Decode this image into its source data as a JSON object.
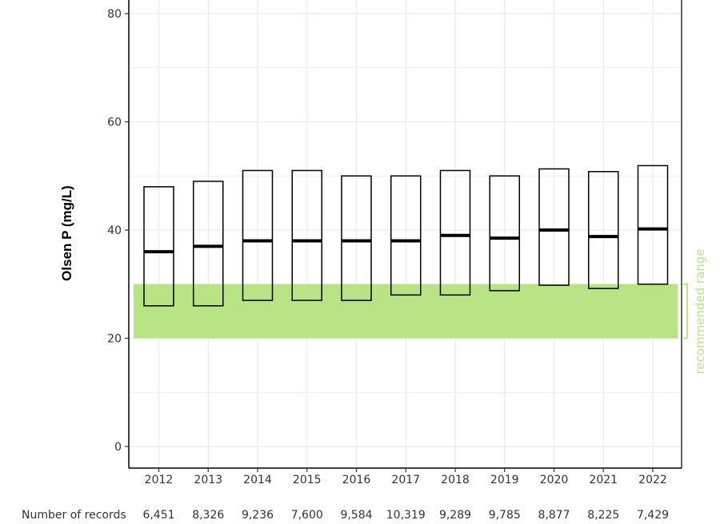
{
  "chart_data": {
    "type": "boxplot",
    "ylabel": "Olsen P (mg/L)",
    "ylim": [
      -4,
      82
    ],
    "yticks": [
      0,
      20,
      40,
      60,
      80
    ],
    "grid": true,
    "categories": [
      "2012",
      "2013",
      "2014",
      "2015",
      "2016",
      "2017",
      "2018",
      "2019",
      "2020",
      "2021",
      "2022"
    ],
    "boxes": [
      {
        "q1": 26,
        "median": 36,
        "q3": 48
      },
      {
        "q1": 26,
        "median": 37,
        "q3": 49
      },
      {
        "q1": 27,
        "median": 38,
        "q3": 51
      },
      {
        "q1": 27,
        "median": 38,
        "q3": 51
      },
      {
        "q1": 27,
        "median": 38,
        "q3": 50
      },
      {
        "q1": 28,
        "median": 38,
        "q3": 50
      },
      {
        "q1": 28,
        "median": 39,
        "q3": 51
      },
      {
        "q1": 28.8,
        "median": 38.5,
        "q3": 50
      },
      {
        "q1": 29.8,
        "median": 40,
        "q3": 51.3
      },
      {
        "q1": 29.2,
        "median": 38.8,
        "q3": 50.8
      },
      {
        "q1": 30,
        "median": 40.2,
        "q3": 51.9
      }
    ],
    "band": {
      "low": 20,
      "high": 30,
      "label": "recommended range",
      "color": "#b8e486"
    },
    "records_label": "Number of records",
    "records": [
      "6,451",
      "8,326",
      "9,236",
      "7,600",
      "9,584",
      "10,319",
      "9,289",
      "9,785",
      "8,877",
      "8,225",
      "7,429"
    ]
  }
}
